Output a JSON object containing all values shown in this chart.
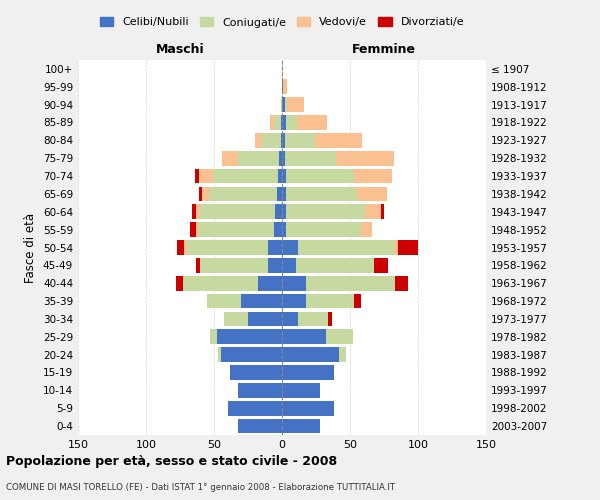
{
  "age_groups": [
    "0-4",
    "5-9",
    "10-14",
    "15-19",
    "20-24",
    "25-29",
    "30-34",
    "35-39",
    "40-44",
    "45-49",
    "50-54",
    "55-59",
    "60-64",
    "65-69",
    "70-74",
    "75-79",
    "80-84",
    "85-89",
    "90-94",
    "95-99",
    "100+"
  ],
  "birth_years": [
    "2003-2007",
    "1998-2002",
    "1993-1997",
    "1988-1992",
    "1983-1987",
    "1978-1982",
    "1973-1977",
    "1968-1972",
    "1963-1967",
    "1958-1962",
    "1953-1957",
    "1948-1952",
    "1943-1947",
    "1938-1942",
    "1933-1937",
    "1928-1932",
    "1923-1927",
    "1918-1922",
    "1913-1917",
    "1908-1912",
    "≤ 1907"
  ],
  "colors": {
    "celibi": "#4472C4",
    "coniugati": "#C6D9A0",
    "vedovi": "#FAC090",
    "divorziati": "#CC0000"
  },
  "maschi": {
    "celibi": [
      32,
      40,
      32,
      38,
      45,
      48,
      25,
      30,
      18,
      10,
      10,
      6,
      5,
      4,
      3,
      2,
      1,
      1,
      0,
      0,
      0
    ],
    "coniugati": [
      0,
      0,
      0,
      0,
      2,
      5,
      18,
      25,
      55,
      50,
      60,
      55,
      55,
      50,
      48,
      30,
      14,
      5,
      1,
      0,
      0
    ],
    "vedovi": [
      0,
      0,
      0,
      0,
      0,
      0,
      0,
      0,
      0,
      0,
      2,
      2,
      3,
      5,
      10,
      12,
      5,
      3,
      0,
      0,
      0
    ],
    "divorziati": [
      0,
      0,
      0,
      0,
      0,
      0,
      0,
      0,
      5,
      3,
      5,
      5,
      3,
      2,
      3,
      0,
      0,
      0,
      0,
      0,
      0
    ]
  },
  "femmine": {
    "celibi": [
      28,
      38,
      28,
      38,
      42,
      32,
      12,
      18,
      18,
      10,
      12,
      3,
      3,
      3,
      3,
      2,
      2,
      3,
      2,
      1,
      0
    ],
    "coniugati": [
      0,
      0,
      0,
      0,
      5,
      20,
      22,
      35,
      65,
      58,
      70,
      55,
      58,
      52,
      50,
      38,
      22,
      8,
      2,
      0,
      0
    ],
    "vedovi": [
      0,
      0,
      0,
      0,
      0,
      0,
      0,
      0,
      0,
      0,
      3,
      8,
      12,
      22,
      28,
      42,
      35,
      22,
      12,
      3,
      1
    ],
    "divorziati": [
      0,
      0,
      0,
      0,
      0,
      0,
      3,
      5,
      10,
      10,
      15,
      0,
      2,
      0,
      0,
      0,
      0,
      0,
      0,
      0,
      0
    ]
  },
  "xlim": 150,
  "title": "Popolazione per età, sesso e stato civile - 2008",
  "subtitle": "COMUNE DI MASI TORELLO (FE) - Dati ISTAT 1° gennaio 2008 - Elaborazione TUTTITALIA.IT",
  "xlabel_left": "Maschi",
  "xlabel_right": "Femmine",
  "ylabel": "Fasce di età",
  "legend_labels": [
    "Celibi/Nubili",
    "Coniugati/e",
    "Vedovi/e",
    "Divorziati/e"
  ],
  "bg_color": "#f0f0f0",
  "plot_bg": "#ffffff"
}
